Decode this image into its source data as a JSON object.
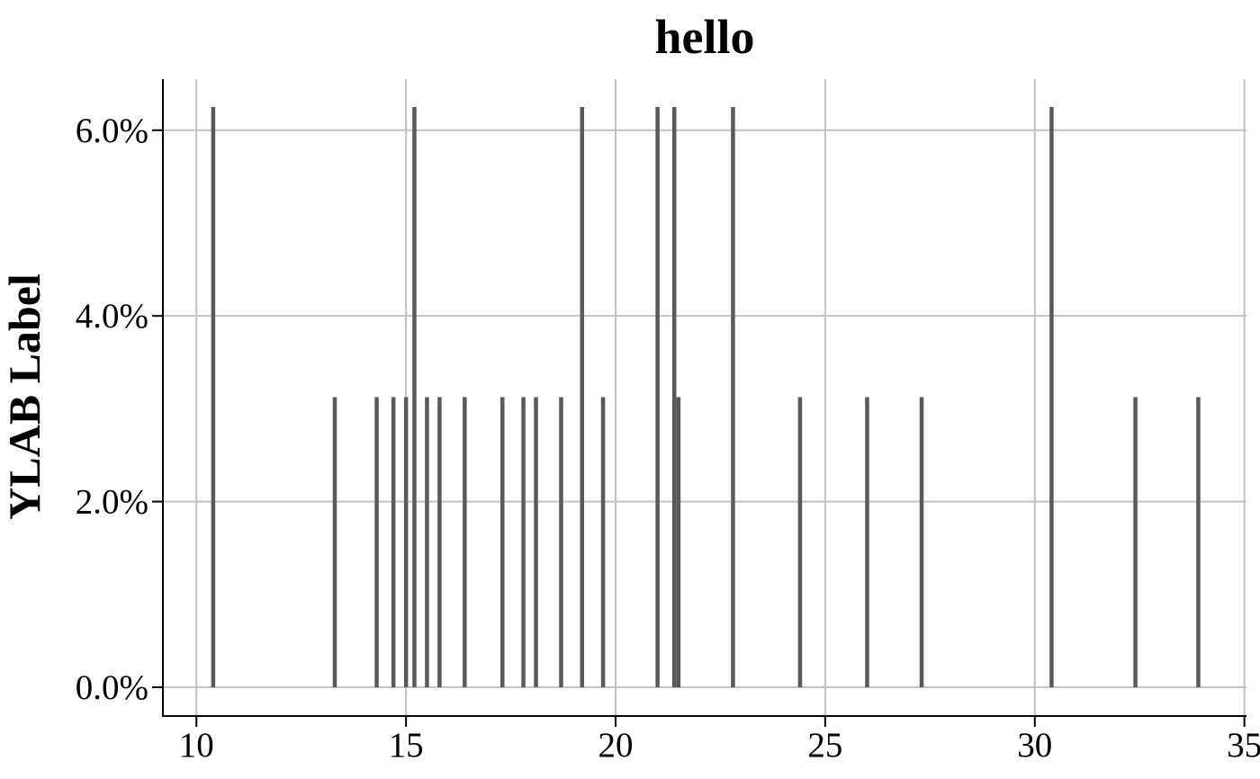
{
  "chart_data": {
    "type": "bar",
    "title": "hello",
    "xlabel": "",
    "ylabel": "YLAB Label",
    "xlim": [
      9.2,
      35.05
    ],
    "ylim": [
      -0.0031,
      0.0655
    ],
    "x_ticks": [
      10,
      15,
      20,
      25,
      30,
      35
    ],
    "x_tick_labels": [
      "10",
      "15",
      "20",
      "25",
      "30",
      "35"
    ],
    "y_ticks": [
      0,
      0.02,
      0.04,
      0.06
    ],
    "y_tick_labels": [
      "0.0%",
      "2.0%",
      "4.0%",
      "6.0%"
    ],
    "grid": true,
    "bar_color": "#595959",
    "x": [
      10.4,
      13.3,
      14.3,
      14.7,
      15.0,
      15.2,
      15.5,
      15.8,
      16.4,
      17.3,
      17.8,
      18.1,
      18.7,
      19.2,
      19.7,
      21.0,
      21.4,
      21.5,
      22.8,
      24.4,
      26.0,
      27.3,
      30.4,
      32.4,
      33.9
    ],
    "values": [
      0.0625,
      0.03125,
      0.03125,
      0.03125,
      0.03125,
      0.0625,
      0.03125,
      0.03125,
      0.03125,
      0.03125,
      0.03125,
      0.03125,
      0.03125,
      0.0625,
      0.03125,
      0.0625,
      0.0625,
      0.03125,
      0.0625,
      0.03125,
      0.03125,
      0.03125,
      0.0625,
      0.03125,
      0.03125
    ]
  }
}
